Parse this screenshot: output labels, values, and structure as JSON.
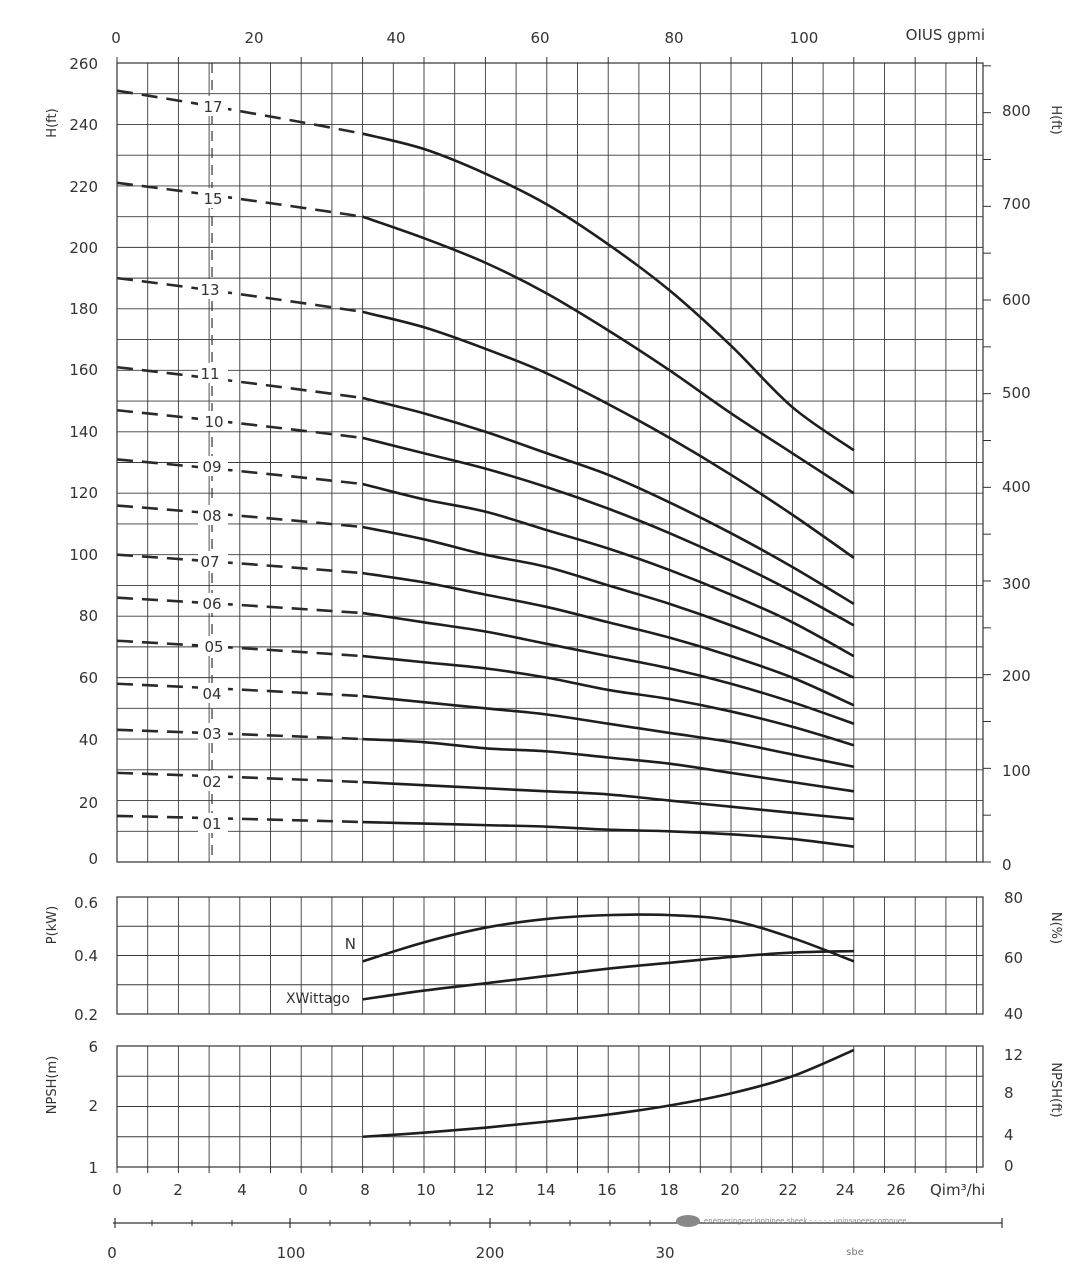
{
  "chart_data": [
    {
      "type": "line",
      "panel": "head",
      "ylabel_left": "H(ft)",
      "ylabel_right": "H(ft)",
      "top_axis_label": "OIUS gpmi",
      "top_ticks": [
        "0",
        "20",
        "40",
        "60",
        "80",
        "100"
      ],
      "yticks_left": [
        "260",
        "240",
        "220",
        "200",
        "180",
        "160",
        "140",
        "120",
        "100",
        "80",
        "60",
        "40",
        "20",
        "0"
      ],
      "yticks_right": [
        "800",
        "700",
        "600",
        "500",
        "400",
        "300",
        "200",
        "100",
        "0"
      ],
      "ylim": [
        0,
        260
      ],
      "xlim": [
        0,
        28
      ],
      "curve_x": [
        8,
        10,
        12,
        14,
        16,
        18,
        20,
        22,
        24
      ],
      "series": [
        {
          "name": "17",
          "start": 251,
          "values": [
            237,
            232,
            224,
            214,
            201,
            186,
            168,
            148,
            134
          ]
        },
        {
          "name": "15",
          "start": 221,
          "values": [
            210,
            203,
            195,
            185,
            173,
            160,
            146,
            133,
            120
          ]
        },
        {
          "name": "13",
          "start": 190,
          "values": [
            179,
            174,
            167,
            159,
            149,
            138,
            126,
            113,
            99
          ]
        },
        {
          "name": "11",
          "start": 161,
          "values": [
            151,
            146,
            140,
            133,
            126,
            117,
            107,
            96,
            84
          ]
        },
        {
          "name": "10",
          "start": 147,
          "values": [
            138,
            133,
            128,
            122,
            115,
            107,
            98,
            88,
            77
          ]
        },
        {
          "name": "09",
          "start": 131,
          "values": [
            123,
            118,
            114,
            108,
            102,
            95,
            87,
            78,
            67
          ]
        },
        {
          "name": "08",
          "start": 116,
          "values": [
            109,
            105,
            100,
            96,
            90,
            84,
            77,
            69,
            60
          ]
        },
        {
          "name": "07",
          "start": 100,
          "values": [
            94,
            91,
            87,
            83,
            78,
            73,
            67,
            60,
            51
          ]
        },
        {
          "name": "06",
          "start": 86,
          "values": [
            81,
            78,
            75,
            71,
            67,
            63,
            58,
            52,
            45
          ]
        },
        {
          "name": "05",
          "start": 72,
          "values": [
            67,
            65,
            63,
            60,
            56,
            53,
            49,
            44,
            38
          ]
        },
        {
          "name": "04",
          "start": 58,
          "values": [
            54,
            52,
            50,
            48,
            45,
            42,
            39,
            35,
            31
          ]
        },
        {
          "name": "03",
          "start": 43,
          "values": [
            40,
            39,
            37,
            36,
            34,
            32,
            29,
            26,
            23
          ]
        },
        {
          "name": "02",
          "start": 29,
          "values": [
            26,
            25,
            24,
            23,
            22,
            20,
            18,
            16,
            14
          ]
        },
        {
          "name": "01",
          "start": 15,
          "values": [
            13,
            12.5,
            12,
            11.5,
            10.5,
            10,
            9,
            7.5,
            5
          ]
        }
      ],
      "curve_labels": [
        "17",
        "15",
        "13",
        "11",
        "10",
        "09",
        "08",
        "07",
        "06",
        "05",
        "04",
        "03",
        "02",
        "01"
      ]
    },
    {
      "type": "line",
      "panel": "power",
      "ylabel_left": "P(kW)",
      "ylabel_right": "N(%)",
      "yticks_left": [
        "0.6",
        "0.4",
        "0.2"
      ],
      "yticks_right": [
        "80",
        "60",
        "40"
      ],
      "ylim": [
        0.2,
        0.6
      ],
      "curve_x": [
        8,
        10,
        12,
        14,
        16,
        18,
        20,
        22,
        24
      ],
      "series": [
        {
          "name": "N",
          "values": [
            0.38,
            0.445,
            0.495,
            0.525,
            0.538,
            0.538,
            0.52,
            0.46,
            0.38
          ]
        },
        {
          "name": "XWittago",
          "values": [
            0.25,
            0.28,
            0.305,
            0.33,
            0.355,
            0.375,
            0.395,
            0.41,
            0.415
          ]
        }
      ]
    },
    {
      "type": "line",
      "panel": "npsh",
      "ylabel_left": "NPSH(m)",
      "ylabel_right": "NPSH(ft)",
      "yticks_left": [
        "6",
        "2",
        "1"
      ],
      "yticks_right": [
        "12",
        "8",
        "4",
        "0"
      ],
      "ylim": [
        0,
        12
      ],
      "curve_x": [
        8,
        10,
        12,
        14,
        16,
        18,
        20,
        22,
        24
      ],
      "series": [
        {
          "name": "",
          "values": [
            3.0,
            3.4,
            3.9,
            4.5,
            5.2,
            6.1,
            7.3,
            9.0,
            11.6
          ]
        }
      ]
    }
  ],
  "bottom_axis": {
    "label": "Qim³/hi",
    "ticks": [
      "0",
      "2",
      "4",
      "0",
      "8",
      "10",
      "12",
      "14",
      "16",
      "18",
      "20",
      "22",
      "24",
      "26"
    ]
  },
  "lower_axis": {
    "ticks": [
      "0",
      "100",
      "200",
      "30",
      "sbe"
    ],
    "faint_note": "enemeringeecionninee sbeek - - - - - uninsaneencomnuee"
  }
}
